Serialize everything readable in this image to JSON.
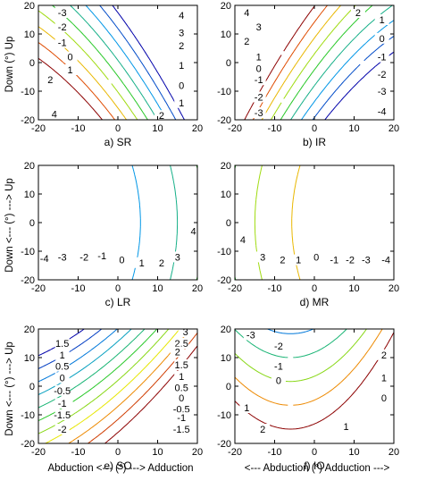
{
  "ylabel_top": "Down (°) Up",
  "ylabel": "Down <--- (°) ---> Up",
  "chart_data": [
    {
      "id": "SR",
      "type": "contour",
      "caption": "a) SR",
      "xlim": [
        -20,
        20
      ],
      "ylim": [
        -20,
        20
      ],
      "xticks": [
        -20,
        -10,
        0,
        10,
        20
      ],
      "yticks": [
        -20,
        -10,
        0,
        10,
        20
      ],
      "levels": [
        -4,
        -3,
        -2,
        -1,
        0,
        1,
        2,
        3,
        4
      ],
      "labels": [
        {
          "x": -14,
          "y": 17.5,
          "v": "-3"
        },
        {
          "x": -14,
          "y": 12.5,
          "v": "-2"
        },
        {
          "x": -14,
          "y": 7,
          "v": "-1"
        },
        {
          "x": -12,
          "y": 2,
          "v": "0"
        },
        {
          "x": -12,
          "y": -2.5,
          "v": "1"
        },
        {
          "x": -17,
          "y": -6,
          "v": "2"
        },
        {
          "x": -16,
          "y": -18,
          "v": "4"
        },
        {
          "x": 16,
          "y": 16.5,
          "v": "4"
        },
        {
          "x": 16,
          "y": 10.5,
          "v": "3"
        },
        {
          "x": 16,
          "y": 6,
          "v": "2"
        },
        {
          "x": 16,
          "y": -1,
          "v": "1"
        },
        {
          "x": 16,
          "y": -8,
          "v": "0"
        },
        {
          "x": 16,
          "y": -14,
          "v": "1"
        },
        {
          "x": 11,
          "y": -18.5,
          "v": "2"
        }
      ]
    },
    {
      "id": "IR",
      "type": "contour",
      "caption": "b) IR",
      "xlim": [
        -20,
        20
      ],
      "ylim": [
        -20,
        20
      ],
      "xticks": [
        -20,
        -10,
        0,
        10,
        20
      ],
      "yticks": [
        -20,
        -10,
        0,
        10,
        20
      ],
      "levels": [
        -4,
        -3,
        -2,
        -1,
        0,
        1,
        2,
        3,
        4
      ],
      "labels": [
        {
          "x": -17,
          "y": 17.5,
          "v": "4"
        },
        {
          "x": -14,
          "y": 12.5,
          "v": "3"
        },
        {
          "x": -17,
          "y": 7.5,
          "v": "2"
        },
        {
          "x": -14,
          "y": 2,
          "v": "1"
        },
        {
          "x": -14,
          "y": -2,
          "v": "0"
        },
        {
          "x": -14,
          "y": -6,
          "v": "-1"
        },
        {
          "x": -14,
          "y": -12,
          "v": "-2"
        },
        {
          "x": -14,
          "y": -17.5,
          "v": "-3"
        },
        {
          "x": 11,
          "y": 17.5,
          "v": "2"
        },
        {
          "x": 17,
          "y": 15,
          "v": "1"
        },
        {
          "x": 17,
          "y": 8.5,
          "v": "0"
        },
        {
          "x": 17,
          "y": 2,
          "v": "-1"
        },
        {
          "x": 17,
          "y": -4,
          "v": "-2"
        },
        {
          "x": 17,
          "y": -10,
          "v": "-3"
        },
        {
          "x": 17,
          "y": -17,
          "v": "-4"
        }
      ]
    },
    {
      "id": "LR",
      "type": "contour",
      "caption": "c) LR",
      "xlim": [
        -20,
        20
      ],
      "ylim": [
        -20,
        20
      ],
      "xticks": [
        -20,
        -10,
        0,
        10,
        20
      ],
      "yticks": [
        -20,
        -10,
        0,
        10,
        20
      ],
      "levels": [
        -4,
        -3,
        -2,
        -1,
        0,
        1,
        2,
        3,
        4
      ],
      "labels": [
        {
          "x": -18.5,
          "y": -12.5,
          "v": "-4"
        },
        {
          "x": -14,
          "y": -12,
          "v": "-3"
        },
        {
          "x": -8.5,
          "y": -12,
          "v": "-2"
        },
        {
          "x": -4,
          "y": -11.5,
          "v": "-1"
        },
        {
          "x": 1,
          "y": -13,
          "v": "0"
        },
        {
          "x": 6,
          "y": -14,
          "v": "1"
        },
        {
          "x": 11,
          "y": -14,
          "v": "2"
        },
        {
          "x": 15,
          "y": -12,
          "v": "3"
        },
        {
          "x": 19,
          "y": -3,
          "v": "4"
        }
      ]
    },
    {
      "id": "MR",
      "type": "contour",
      "caption": "d) MR",
      "xlim": [
        -20,
        20
      ],
      "ylim": [
        -20,
        20
      ],
      "xticks": [
        -20,
        -10,
        0,
        10,
        20
      ],
      "yticks": [
        -20,
        -10,
        0,
        10,
        20
      ],
      "levels": [
        -4,
        -3,
        -2,
        -1,
        0,
        1,
        2,
        3,
        4
      ],
      "labels": [
        {
          "x": -18,
          "y": -6,
          "v": "4"
        },
        {
          "x": -13,
          "y": -12,
          "v": "3"
        },
        {
          "x": -8,
          "y": -13,
          "v": "2"
        },
        {
          "x": -4,
          "y": -13,
          "v": "1"
        },
        {
          "x": 0.5,
          "y": -12,
          "v": "0"
        },
        {
          "x": 5,
          "y": -13,
          "v": "-1"
        },
        {
          "x": 9,
          "y": -13,
          "v": "-2"
        },
        {
          "x": 13,
          "y": -13,
          "v": "-3"
        },
        {
          "x": 18,
          "y": -13,
          "v": "-4"
        }
      ]
    },
    {
      "id": "SO",
      "type": "contour",
      "caption": "e) SO",
      "xlabel": "Abduction <--- (°) ---> Adduction",
      "xlim": [
        -20,
        20
      ],
      "ylim": [
        -20,
        20
      ],
      "xticks": [
        -20,
        -10,
        0,
        10,
        20
      ],
      "yticks": [
        -20,
        -10,
        0,
        10,
        20
      ],
      "levels": [
        -2,
        -1.5,
        -1,
        -0.5,
        0,
        0.5,
        1,
        1.5,
        2,
        2.5,
        3
      ],
      "labels": [
        {
          "x": -14,
          "y": 15,
          "v": "1.5"
        },
        {
          "x": -14,
          "y": 11,
          "v": "1"
        },
        {
          "x": -14,
          "y": 7,
          "v": "0.5"
        },
        {
          "x": -14,
          "y": 3,
          "v": "0"
        },
        {
          "x": -14,
          "y": -1.5,
          "v": "-0.5"
        },
        {
          "x": -14,
          "y": -6,
          "v": "-1"
        },
        {
          "x": -14,
          "y": -10,
          "v": "-1.5"
        },
        {
          "x": -14,
          "y": -15,
          "v": "-2"
        },
        {
          "x": 17,
          "y": 19,
          "v": "3"
        },
        {
          "x": 16,
          "y": 15,
          "v": "2.5"
        },
        {
          "x": 15,
          "y": 12,
          "v": "2"
        },
        {
          "x": 16,
          "y": 7.5,
          "v": "1.5"
        },
        {
          "x": 16,
          "y": 3.5,
          "v": "1"
        },
        {
          "x": 16,
          "y": -0.5,
          "v": "0.5"
        },
        {
          "x": 16,
          "y": -4,
          "v": "0"
        },
        {
          "x": 16,
          "y": -8,
          "v": "-0.5"
        },
        {
          "x": 16,
          "y": -11,
          "v": "-1"
        },
        {
          "x": 16,
          "y": -15,
          "v": "-1.5"
        }
      ]
    },
    {
      "id": "IO",
      "type": "contour",
      "caption": "f) IO",
      "xlabel": "<--- Abduction (°) Adduction --->",
      "xlim": [
        -20,
        20
      ],
      "ylim": [
        -20,
        20
      ],
      "xticks": [
        -20,
        -10,
        0,
        10,
        20
      ],
      "yticks": [
        -20,
        -10,
        0,
        10,
        20
      ],
      "levels": [
        -3,
        -2,
        -1,
        0,
        1,
        2
      ],
      "labels": [
        {
          "x": -16,
          "y": 18,
          "v": "-3"
        },
        {
          "x": -9,
          "y": 14,
          "v": "-2"
        },
        {
          "x": -9,
          "y": 7,
          "v": "-1"
        },
        {
          "x": -9,
          "y": 2,
          "v": "0"
        },
        {
          "x": -17,
          "y": -7.5,
          "v": "1"
        },
        {
          "x": -13,
          "y": -15,
          "v": "2"
        },
        {
          "x": 17.5,
          "y": 11,
          "v": "2"
        },
        {
          "x": 17.5,
          "y": 3,
          "v": "1"
        },
        {
          "x": 17.5,
          "y": -4,
          "v": "0"
        },
        {
          "x": 8,
          "y": -14,
          "v": "1"
        }
      ]
    }
  ]
}
